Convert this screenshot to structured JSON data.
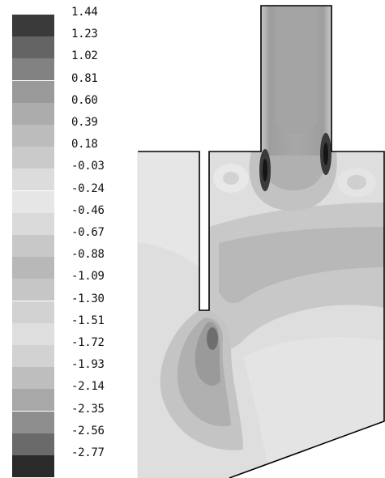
{
  "legend": {
    "labels": [
      "1.44",
      "1.23",
      "1.02",
      "0.81",
      "0.60",
      "0.39",
      "0.18",
      "-0.03",
      "-0.24",
      "-0.46",
      "-0.67",
      "-0.88",
      "-1.09",
      "-1.30",
      "-1.51",
      "-1.72",
      "-1.93",
      "-2.14",
      "-2.35",
      "-2.56",
      "-2.77"
    ],
    "colors": [
      "#3a3a3a",
      "#646464",
      "#828282",
      "#9a9a9a",
      "#acacac",
      "#bcbcbc",
      "#cacaca",
      "#dcdcdc",
      "#e6e6e6",
      "#dadada",
      "#c8c8c8",
      "#b8b8b8",
      "#c6c6c6",
      "#d2d2d2",
      "#dedede",
      "#d2d2d2",
      "#bebebe",
      "#a8a8a8",
      "#8e8e8e",
      "#6a6a6a",
      "#2a2a2a"
    ]
  },
  "figure": {
    "domain_outline_color": "#000000",
    "fill_colors": {
      "background": "#dedede",
      "light": "#e8e8e8",
      "medium": "#c6c6c6",
      "dark": "#a8a8a8",
      "darker": "#8e8e8e",
      "darkest": "#1e1e1e",
      "outlet": "#a6a6a6"
    }
  }
}
